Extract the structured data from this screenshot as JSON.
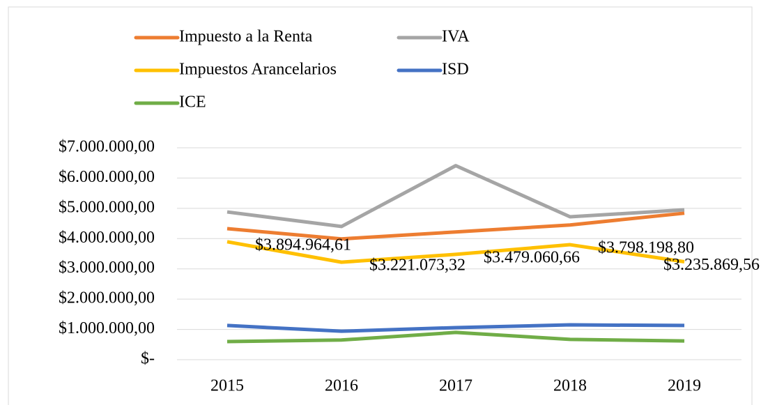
{
  "chart_data": {
    "type": "line",
    "categories": [
      "2015",
      "2016",
      "2017",
      "2018",
      "2019"
    ],
    "series": [
      {
        "name": "Impuesto a la Renta",
        "color": "#ed7d31",
        "values": [
          4330000,
          3990000,
          4220000,
          4450000,
          4840000
        ]
      },
      {
        "name": "IVA",
        "color": "#a5a5a5",
        "values": [
          4880000,
          4400000,
          6410000,
          4720000,
          4950000
        ]
      },
      {
        "name": "Impuestos Arancelarios",
        "color": "#ffc000",
        "values": [
          3894964.61,
          3221073.32,
          3479060.66,
          3798198.8,
          3235869.56
        ],
        "value_labels": [
          "$3.894.964,61",
          "$3.221.073,32",
          "$3.479.060,66",
          "$3.798.198,80",
          "$3.235.869,56"
        ]
      },
      {
        "name": "ISD",
        "color": "#4472c4",
        "values": [
          1130000,
          940000,
          1060000,
          1150000,
          1130000
        ]
      },
      {
        "name": "ICE",
        "color": "#70ad47",
        "values": [
          600000,
          650000,
          900000,
          670000,
          620000
        ]
      }
    ],
    "ylim": [
      0,
      7000000
    ],
    "yticks": [
      {
        "value": 0,
        "label": "$-"
      },
      {
        "value": 1000000,
        "label": "$1.000.000,00"
      },
      {
        "value": 2000000,
        "label": "$2.000.000,00"
      },
      {
        "value": 3000000,
        "label": "$3.000.000,00"
      },
      {
        "value": 4000000,
        "label": "$4.000.000,00"
      },
      {
        "value": 5000000,
        "label": "$5.000.000,00"
      },
      {
        "value": 6000000,
        "label": "$6.000.000,00"
      },
      {
        "value": 7000000,
        "label": "$7.000.000,00"
      }
    ],
    "grid": true,
    "legend": "top"
  }
}
